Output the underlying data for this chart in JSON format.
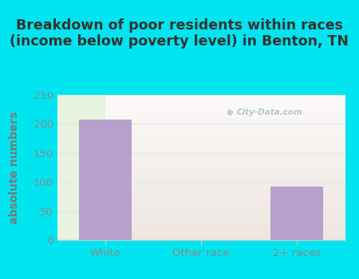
{
  "title": "Breakdown of poor residents within races\n(income below poverty level) in Benton, TN",
  "categories": [
    "White",
    "Other race",
    "2+ races"
  ],
  "values": [
    207,
    0,
    92
  ],
  "bar_color": "#b8a0cc",
  "ylabel": "absolute numbers",
  "ylim": [
    0,
    250
  ],
  "yticks": [
    0,
    50,
    100,
    150,
    200,
    250
  ],
  "background_outer": "#00e5f0",
  "background_plot_top": "#f0f7ee",
  "background_plot_bottom": "#e8f3e0",
  "grid_color": "#e0ece0",
  "title_color": "#333333",
  "title_fontsize": 12.5,
  "ylabel_color": "#7a7a7a",
  "ylabel_fontsize": 10,
  "tick_label_color": "#888888",
  "xtick_label_color": "#888888",
  "watermark_text": "City-Data.com",
  "watermark_color": "#aac8bb",
  "spine_color": "#cccccc"
}
